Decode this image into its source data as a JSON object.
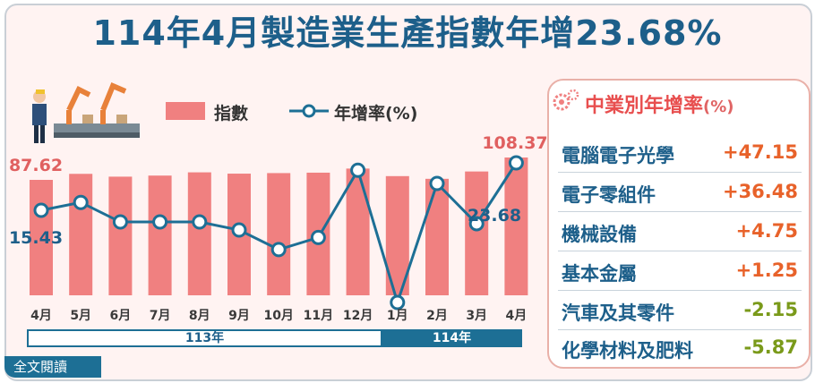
{
  "title": "114年4月製造業生產指數年增23.68%",
  "legend": {
    "index_label": "指數",
    "growth_label": "年增率(%)"
  },
  "chart_data": {
    "type": "bar",
    "title": "114年4月製造業生產指數年增23.68%",
    "categories": [
      "4月",
      "5月",
      "6月",
      "7月",
      "8月",
      "9月",
      "10月",
      "11月",
      "12月",
      "1月",
      "2月",
      "3月",
      "4月"
    ],
    "year_groups": [
      {
        "label": "113年",
        "months": 9
      },
      {
        "label": "114年",
        "months": 4
      }
    ],
    "series": [
      {
        "name": "指數",
        "type": "bar",
        "color": "#f08080",
        "values": [
          87.62,
          93.2,
          90.6,
          91.6,
          94.6,
          93.4,
          93.9,
          94.3,
          98.1,
          91.1,
          88.6,
          95.4,
          108.37
        ]
      },
      {
        "name": "年增率(%)",
        "type": "line",
        "color": "#1d6f95",
        "values": [
          15.43,
          16.8,
          13.4,
          13.4,
          13.4,
          12.0,
          8.6,
          10.7,
          22.4,
          -0.6,
          20.1,
          13.1,
          23.68
        ]
      }
    ],
    "data_labels": {
      "index_first": "87.62",
      "index_last": "108.37",
      "growth_first": "15.43",
      "growth_last": "23.68"
    },
    "grid": false,
    "legend_position": "top"
  },
  "panel": {
    "title": "中業別年增率",
    "unit": "(%)",
    "items": [
      {
        "name": "電腦電子光學",
        "value": "+47.15",
        "color": "#e8622a"
      },
      {
        "name": "電子零組件",
        "value": "+36.48",
        "color": "#e8622a"
      },
      {
        "name": "機械設備",
        "value": "+4.75",
        "color": "#e8622a"
      },
      {
        "name": "基本金屬",
        "value": "+1.25",
        "color": "#e8622a"
      },
      {
        "name": "汽車及其零件",
        "value": "-2.15",
        "color": "#7a9a1a"
      },
      {
        "name": "化學材料及肥料",
        "value": "-5.87",
        "color": "#7a9a1a"
      }
    ]
  },
  "read_full": "全文閱讀",
  "colors": {
    "title": "#1d5f8a",
    "bar": "#f08080",
    "line": "#1d6f95",
    "panel_title": "#e84f4f"
  }
}
